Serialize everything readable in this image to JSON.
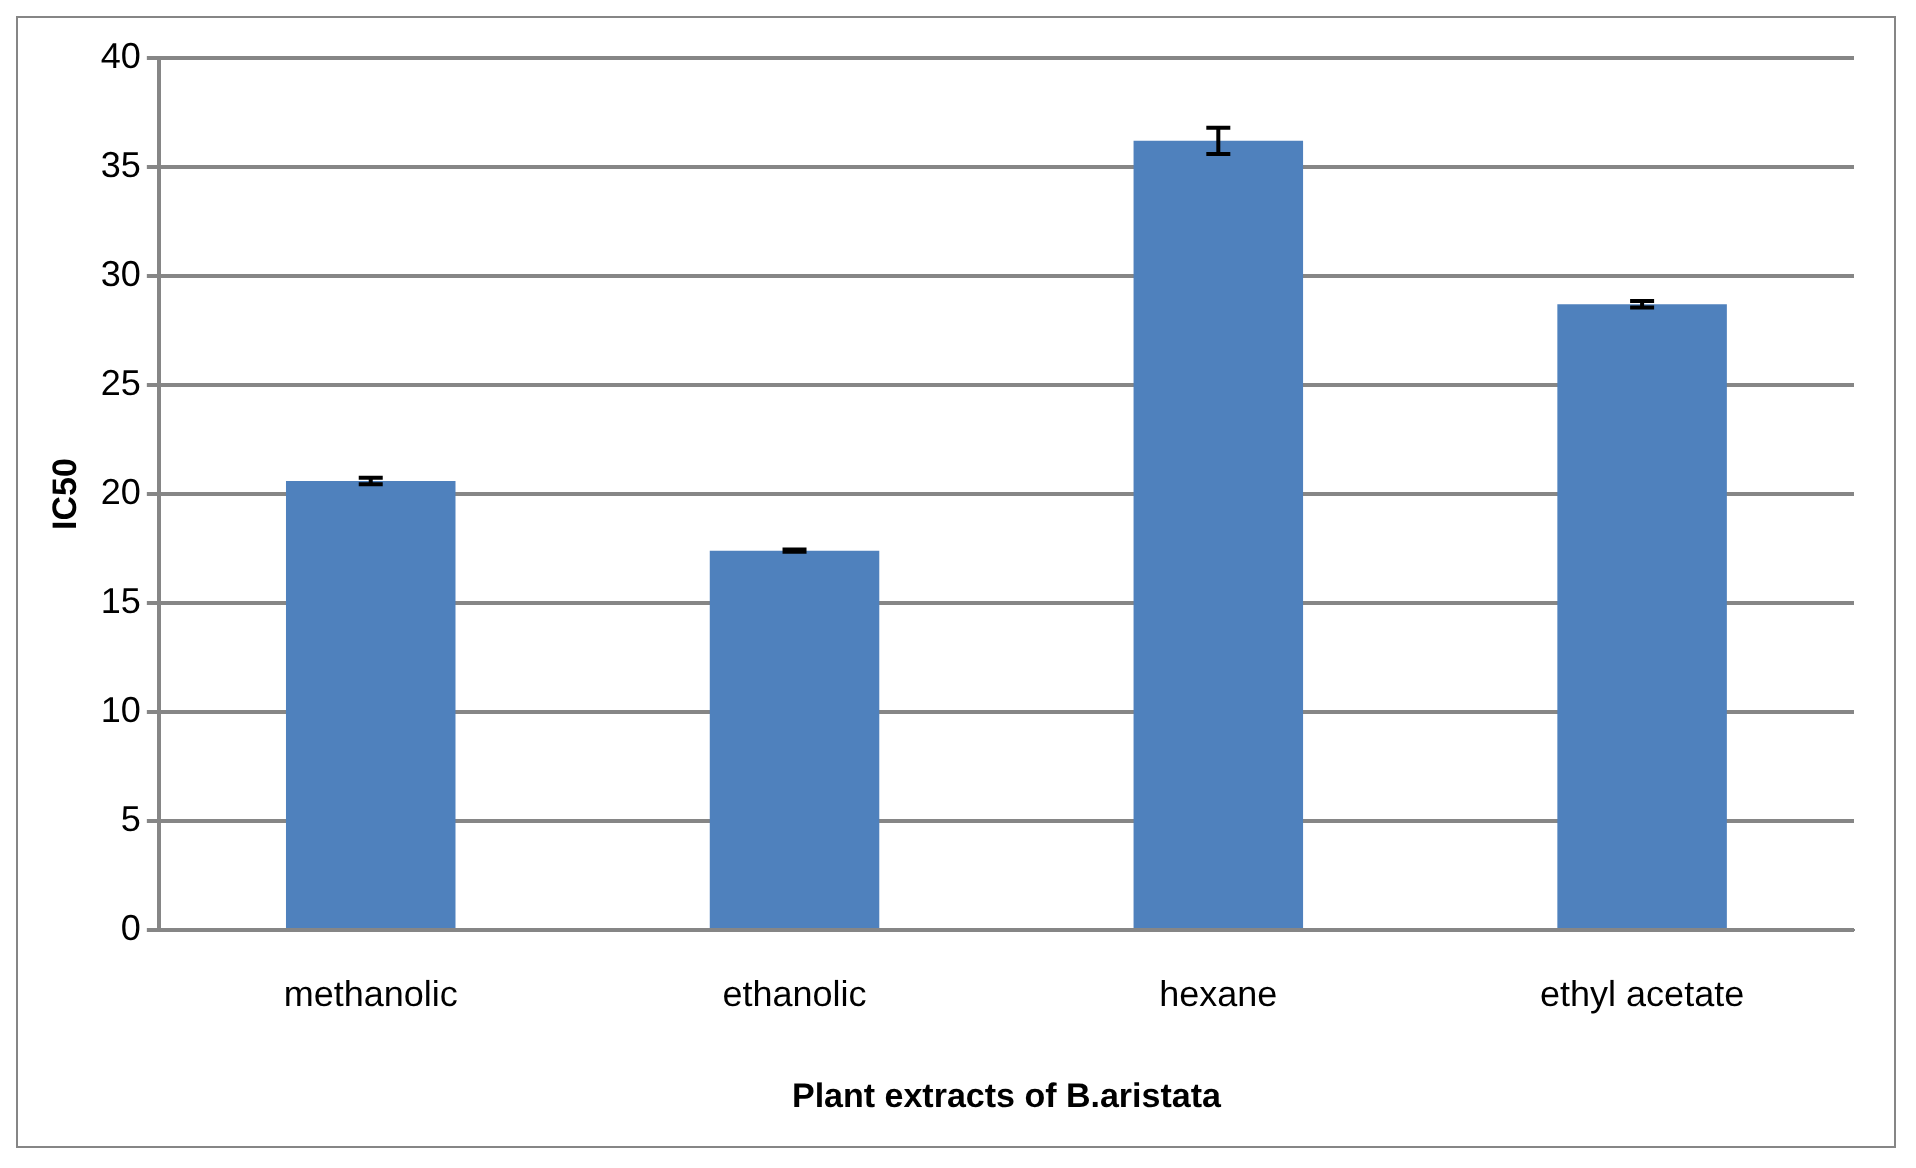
{
  "chart_data": {
    "type": "bar",
    "xlabel": "Plant extracts of B.aristata",
    "ylabel": "IC50",
    "categories": [
      "methanolic",
      "ethanolic",
      "hexane",
      "ethyl acetate"
    ],
    "values": [
      20.6,
      17.4,
      36.2,
      28.7
    ],
    "errors": [
      0.15,
      0.05,
      0.6,
      0.15
    ],
    "color": "#4f81bd",
    "ylim": [
      0,
      40
    ],
    "yticks": [
      0,
      5,
      10,
      15,
      20,
      25,
      30,
      35,
      40
    ],
    "grid": "y",
    "legend": false
  }
}
